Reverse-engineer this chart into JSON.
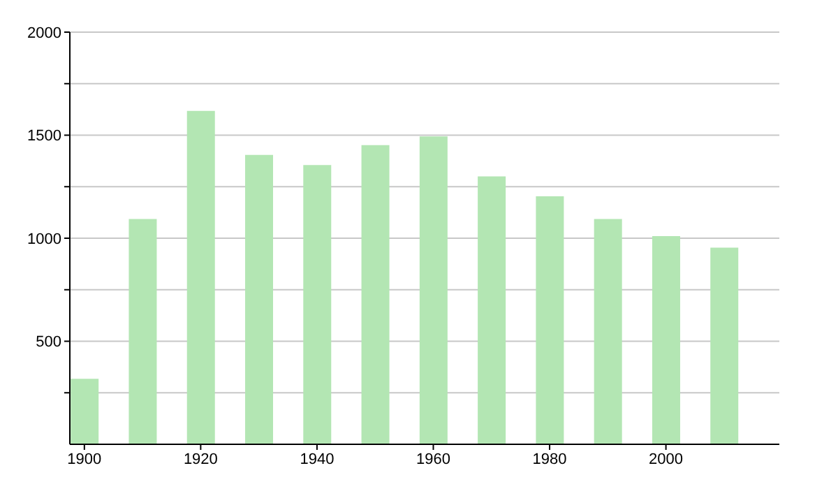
{
  "chart_data": {
    "type": "bar",
    "x": [
      1900,
      1910,
      1920,
      1930,
      1940,
      1950,
      1960,
      1970,
      1980,
      1990,
      2000,
      2010
    ],
    "values": [
      318,
      1093,
      1618,
      1404,
      1355,
      1452,
      1494,
      1300,
      1203,
      1093,
      1010,
      954
    ],
    "color": "#b3e6b3",
    "xlim": [
      1897.5,
      2019.5
    ],
    "xticks": [
      1900,
      1920,
      1940,
      1960,
      1980,
      2000
    ],
    "ylim": [
      0,
      2000
    ],
    "yticks": [
      {
        "value": 250,
        "label": null
      },
      500,
      {
        "value": 750,
        "label": null
      },
      1000,
      {
        "value": 1250,
        "label": null
      },
      1500,
      {
        "value": 1750,
        "label": null
      },
      2000
    ],
    "grid": "y"
  }
}
